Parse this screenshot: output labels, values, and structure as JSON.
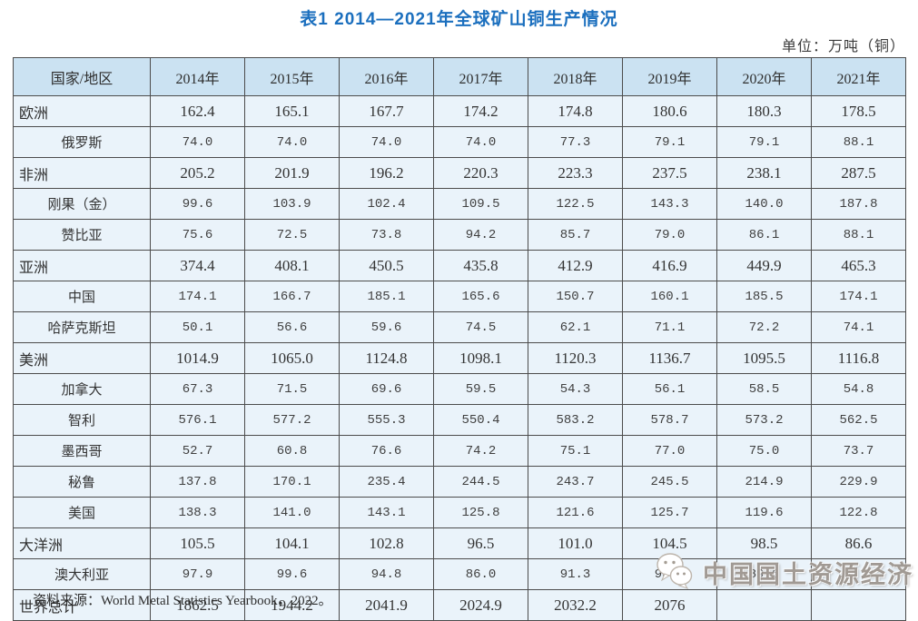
{
  "title": "表1 2014—2021年全球矿山铜生产情况",
  "unit_note": "单位：万吨（铜）",
  "source_note": "资料来源：World Metal Statistics Yearbook，2022。",
  "watermark": {
    "logo": "wechat-icon",
    "text": "中国国土资源经济"
  },
  "colors": {
    "title_blue": "#1b6fbe",
    "header_bg": "#cbe2f2",
    "row_bg": "#eaf3fa",
    "border": "#4c4c4c",
    "text": "#3a3a3a"
  },
  "chart_data": {
    "type": "table",
    "title": "表1 2014—2021年全球矿山铜生产情况",
    "unit": "万吨（铜）",
    "columns": [
      "国家/地区",
      "2014年",
      "2015年",
      "2016年",
      "2017年",
      "2018年",
      "2019年",
      "2020年",
      "2021年"
    ],
    "rows": [
      {
        "label": "欧洲",
        "level": "region",
        "values": [
          "162.4",
          "165.1",
          "167.7",
          "174.2",
          "174.8",
          "180.6",
          "180.3",
          "178.5"
        ]
      },
      {
        "label": "俄罗斯",
        "level": "sub",
        "values": [
          "74.0",
          "74.0",
          "74.0",
          "74.0",
          "77.3",
          "79.1",
          "79.1",
          "88.1"
        ]
      },
      {
        "label": "非洲",
        "level": "region",
        "values": [
          "205.2",
          "201.9",
          "196.2",
          "220.3",
          "223.3",
          "237.5",
          "238.1",
          "287.5"
        ]
      },
      {
        "label": "刚果（金）",
        "level": "sub",
        "values": [
          "99.6",
          "103.9",
          "102.4",
          "109.5",
          "122.5",
          "143.3",
          "140.0",
          "187.8"
        ]
      },
      {
        "label": "赞比亚",
        "level": "sub",
        "values": [
          "75.6",
          "72.5",
          "73.8",
          "94.2",
          "85.7",
          "79.0",
          "86.1",
          "88.1"
        ]
      },
      {
        "label": "亚洲",
        "level": "region",
        "values": [
          "374.4",
          "408.1",
          "450.5",
          "435.8",
          "412.9",
          "416.9",
          "449.9",
          "465.3"
        ]
      },
      {
        "label": "中国",
        "level": "sub",
        "values": [
          "174.1",
          "166.7",
          "185.1",
          "165.6",
          "150.7",
          "160.1",
          "185.5",
          "174.1"
        ]
      },
      {
        "label": "哈萨克斯坦",
        "level": "sub",
        "values": [
          "50.1",
          "56.6",
          "59.6",
          "74.5",
          "62.1",
          "71.1",
          "72.2",
          "74.1"
        ]
      },
      {
        "label": "美洲",
        "level": "region",
        "values": [
          "1014.9",
          "1065.0",
          "1124.8",
          "1098.1",
          "1120.3",
          "1136.7",
          "1095.5",
          "1116.8"
        ]
      },
      {
        "label": "加拿大",
        "level": "sub",
        "values": [
          "67.3",
          "71.5",
          "69.6",
          "59.5",
          "54.3",
          "56.1",
          "58.5",
          "54.8"
        ]
      },
      {
        "label": "智利",
        "level": "sub",
        "values": [
          "576.1",
          "577.2",
          "555.3",
          "550.4",
          "583.2",
          "578.7",
          "573.2",
          "562.5"
        ]
      },
      {
        "label": "墨西哥",
        "level": "sub",
        "values": [
          "52.7",
          "60.8",
          "76.6",
          "74.2",
          "75.1",
          "77.0",
          "75.0",
          "73.7"
        ]
      },
      {
        "label": "秘鲁",
        "level": "sub",
        "values": [
          "137.8",
          "170.1",
          "235.4",
          "244.5",
          "243.7",
          "245.5",
          "214.9",
          "229.9"
        ]
      },
      {
        "label": "美国",
        "level": "sub",
        "values": [
          "138.3",
          "141.0",
          "143.1",
          "125.8",
          "121.6",
          "125.7",
          "119.6",
          "122.8"
        ]
      },
      {
        "label": "大洋洲",
        "level": "region",
        "values": [
          "105.5",
          "104.1",
          "102.8",
          "96.5",
          "101.0",
          "104.5",
          "98.5",
          "86.6"
        ]
      },
      {
        "label": "澳大利亚",
        "level": "sub",
        "values": [
          "97.9",
          "99.6",
          "94.8",
          "86.0",
          "91.3",
          "93.4",
          "89.6",
          "81.8"
        ]
      },
      {
        "label": "世界总计",
        "level": "total",
        "values": [
          "1862.5",
          "1944.2",
          "2041.9",
          "2024.9",
          "2032.2",
          "2076",
          "",
          ""
        ]
      }
    ]
  }
}
